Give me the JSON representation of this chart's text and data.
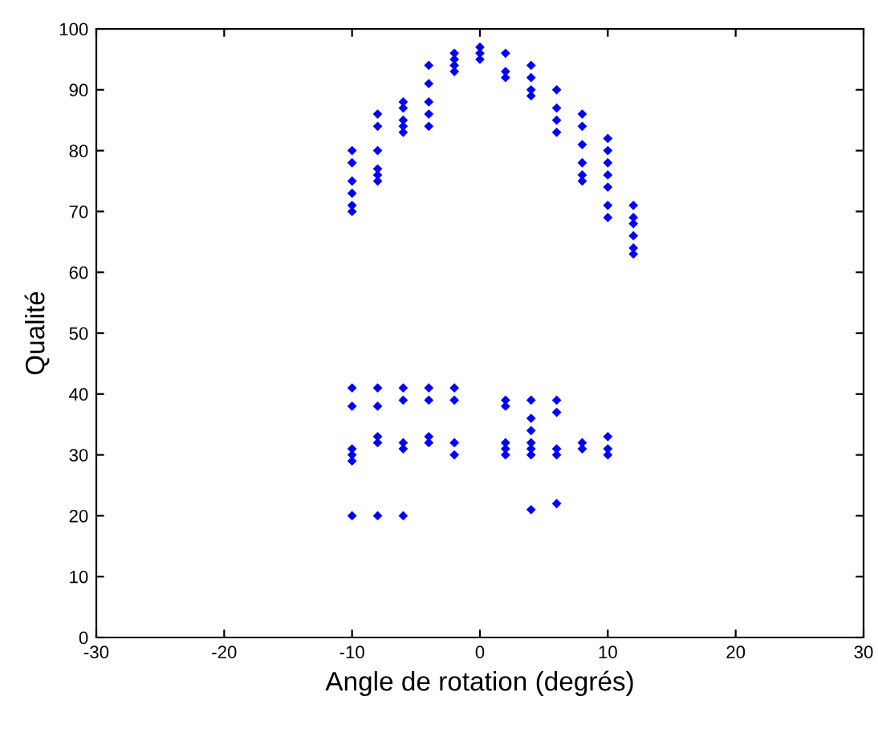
{
  "chart_data": {
    "type": "scatter",
    "xlabel": "Angle de rotation (degrés)",
    "ylabel": "Qualité",
    "xlim": [
      -30,
      30
    ],
    "ylim": [
      0,
      100
    ],
    "xticks": [
      -30,
      -20,
      -10,
      0,
      10,
      20,
      30
    ],
    "yticks": [
      0,
      10,
      20,
      30,
      40,
      50,
      60,
      70,
      80,
      90,
      100
    ],
    "grid": false,
    "marker": "diamond",
    "series": [
      {
        "color": "#0000ff",
        "x": [
          -10,
          -10,
          -10,
          -10,
          -10,
          -10,
          -8,
          -8,
          -8,
          -8,
          -8,
          -8,
          -6,
          -6,
          -6,
          -6,
          -6,
          -4,
          -4,
          -4,
          -4,
          -4,
          -2,
          -2,
          -2,
          -2,
          0,
          0,
          0,
          2,
          2,
          2,
          4,
          4,
          4,
          4,
          6,
          6,
          6,
          6,
          8,
          8,
          8,
          8,
          8,
          8,
          10,
          10,
          10,
          10,
          10,
          10,
          10,
          12,
          12,
          12,
          12,
          12,
          12,
          -10,
          -10,
          -10,
          -10,
          -10,
          -10,
          -8,
          -8,
          -8,
          -8,
          -8,
          -6,
          -6,
          -6,
          -6,
          -6,
          -4,
          -4,
          -4,
          -4,
          -2,
          -2,
          -2,
          -2,
          2,
          2,
          2,
          2,
          2,
          4,
          4,
          4,
          4,
          4,
          4,
          4,
          6,
          6,
          6,
          6,
          6,
          8,
          8,
          10,
          10,
          10
        ],
        "values": [
          80,
          78,
          75,
          73,
          71,
          70,
          86,
          84,
          80,
          77,
          76,
          75,
          88,
          87,
          85,
          84,
          83,
          94,
          91,
          88,
          86,
          84,
          96,
          95,
          94,
          93,
          97,
          96,
          95,
          96,
          93,
          92,
          94,
          92,
          90,
          89,
          90,
          87,
          85,
          83,
          86,
          84,
          81,
          78,
          76,
          75,
          82,
          80,
          78,
          76,
          74,
          71,
          69,
          71,
          69,
          68,
          66,
          64,
          63,
          41,
          38,
          31,
          30,
          29,
          20,
          41,
          38,
          33,
          32,
          20,
          41,
          39,
          32,
          31,
          20,
          41,
          39,
          33,
          32,
          41,
          39,
          32,
          30,
          39,
          38,
          32,
          31,
          30,
          39,
          36,
          34,
          32,
          31,
          30,
          21,
          39,
          37,
          31,
          30,
          22,
          32,
          31,
          33,
          31,
          30
        ]
      }
    ]
  }
}
